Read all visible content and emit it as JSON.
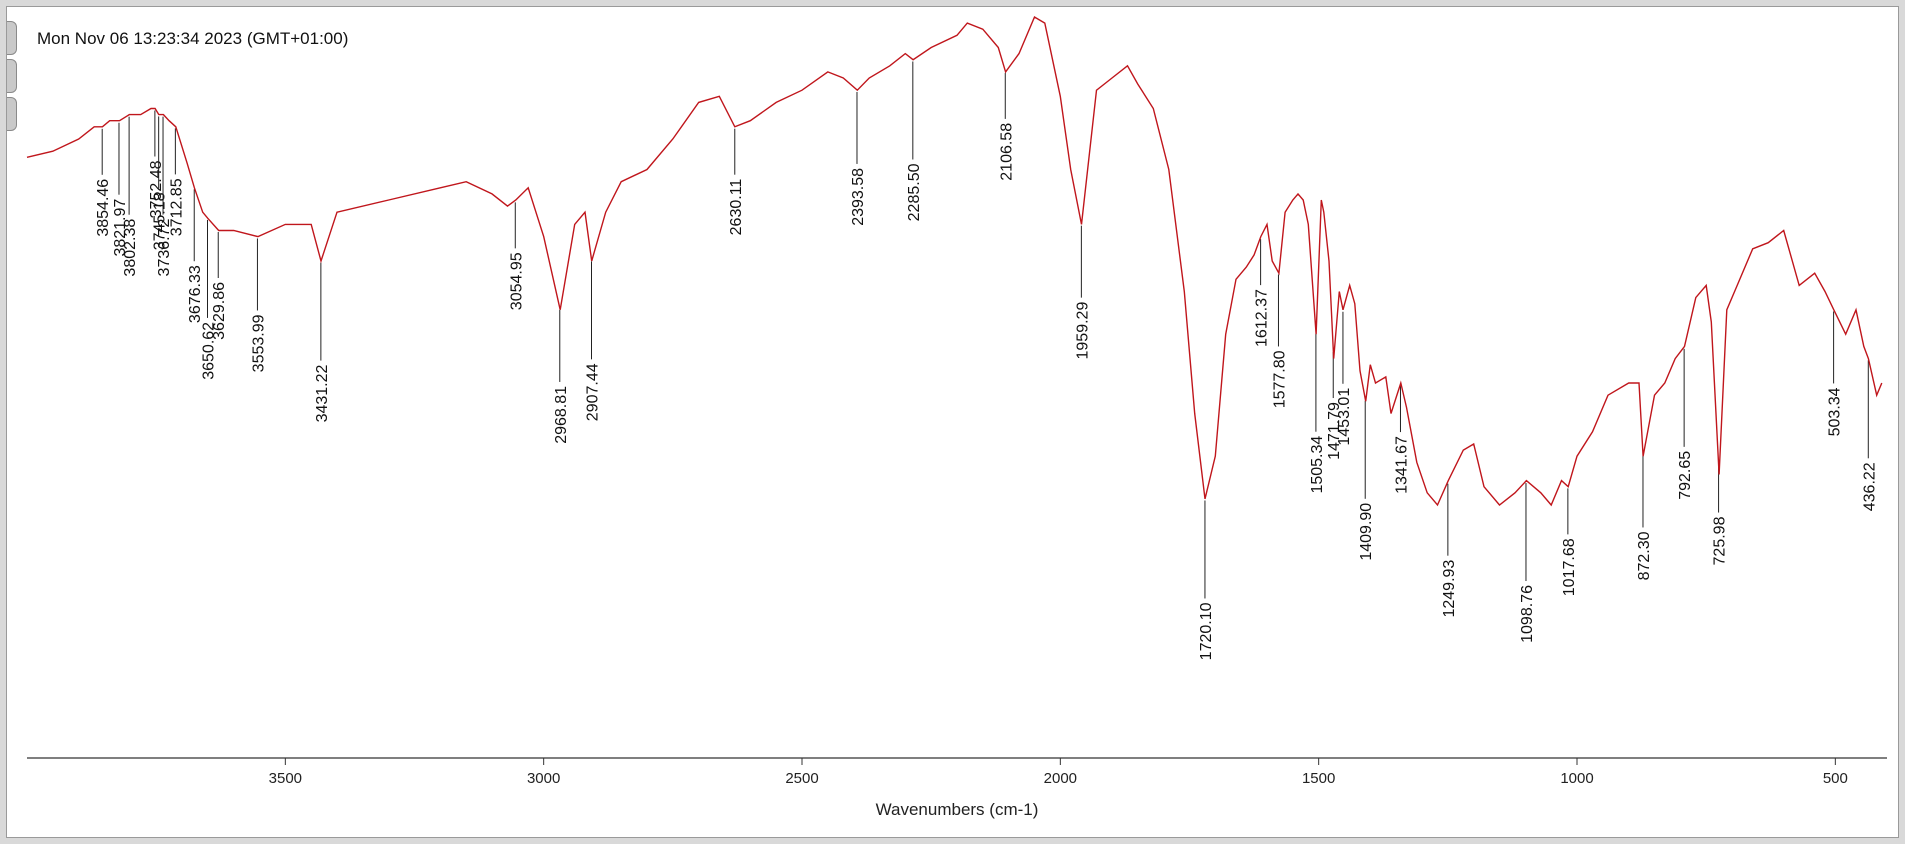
{
  "window": {
    "timestamp": "Mon Nov 06 13:23:34 2023 (GMT+01:00)"
  },
  "colors": {
    "spectrum": "#c0161c",
    "axis": "#333333",
    "background": "#ffffff"
  },
  "chart_data": {
    "type": "line",
    "title": "",
    "xlabel": "Wavenumbers (cm-1)",
    "ylabel": "",
    "xlim": [
      4000,
      400
    ],
    "ylim": [
      0,
      100
    ],
    "x_reversed": true,
    "grid": false,
    "legend": "none",
    "x_ticks": [
      3500,
      3000,
      2500,
      2000,
      1500,
      1000,
      500
    ],
    "x_tick_labels": [
      "3500",
      "3000",
      "2500",
      "2000",
      "1500",
      "1000",
      "500"
    ],
    "series": [
      {
        "x": [
          4000,
          3950,
          3900,
          3870,
          3854,
          3840,
          3821,
          3802,
          3780,
          3760,
          3752,
          3745,
          3736,
          3725,
          3712,
          3690,
          3676,
          3660,
          3650,
          3629,
          3600,
          3553,
          3500,
          3450,
          3431,
          3400,
          3300,
          3200,
          3150,
          3100,
          3070,
          3054,
          3030,
          3000,
          2968,
          2940,
          2920,
          2907,
          2880,
          2850,
          2800,
          2750,
          2700,
          2660,
          2630,
          2600,
          2550,
          2500,
          2450,
          2420,
          2393,
          2370,
          2330,
          2300,
          2285,
          2250,
          2200,
          2180,
          2150,
          2120,
          2106,
          2080,
          2050,
          2030,
          2000,
          1980,
          1959,
          1930,
          1900,
          1870,
          1850,
          1820,
          1790,
          1760,
          1740,
          1720,
          1700,
          1680,
          1660,
          1640,
          1625,
          1612,
          1600,
          1590,
          1577,
          1565,
          1550,
          1540,
          1530,
          1520,
          1505,
          1495,
          1490,
          1480,
          1471,
          1460,
          1453,
          1440,
          1430,
          1420,
          1409,
          1400,
          1390,
          1370,
          1360,
          1341,
          1330,
          1310,
          1290,
          1270,
          1249,
          1220,
          1200,
          1180,
          1150,
          1120,
          1098,
          1070,
          1050,
          1030,
          1017,
          1000,
          970,
          940,
          900,
          880,
          872,
          850,
          830,
          810,
          792,
          770,
          750,
          740,
          725,
          710,
          690,
          660,
          630,
          600,
          570,
          540,
          520,
          503,
          480,
          460,
          445,
          436,
          420,
          410
        ],
        "y": [
          77,
          78,
          80,
          82,
          82,
          83,
          83,
          84,
          84,
          85,
          85,
          84,
          84,
          83,
          82,
          76,
          72,
          68,
          67,
          65,
          65,
          64,
          66,
          66,
          60,
          68,
          70,
          72,
          73,
          71,
          69,
          70,
          72,
          64,
          52,
          66,
          68,
          60,
          68,
          73,
          75,
          80,
          86,
          87,
          82,
          83,
          86,
          88,
          91,
          90,
          88,
          90,
          92,
          94,
          93,
          95,
          97,
          99,
          98,
          95,
          91,
          94,
          100,
          99,
          87,
          75,
          66,
          88,
          90,
          92,
          89,
          85,
          75,
          55,
          35,
          21,
          28,
          48,
          57,
          59,
          61,
          64,
          66,
          60,
          58,
          68,
          70,
          71,
          70,
          66,
          48,
          70,
          68,
          60,
          44,
          55,
          52,
          56,
          53,
          42,
          37,
          43,
          40,
          41,
          35,
          40,
          36,
          27,
          22,
          20,
          24,
          29,
          30,
          23,
          20,
          22,
          24,
          22,
          20,
          24,
          23,
          28,
          32,
          38,
          40,
          40,
          28,
          38,
          40,
          44,
          46,
          54,
          56,
          50,
          25,
          52,
          56,
          62,
          63,
          65,
          56,
          58,
          55,
          52,
          48,
          52,
          46,
          44,
          38,
          40
        ]
      }
    ],
    "peak_labels": [
      {
        "x": 3854.46,
        "text": "3854.46"
      },
      {
        "x": 3821.97,
        "text": "3821.97"
      },
      {
        "x": 3802.38,
        "text": "3802.38"
      },
      {
        "x": 3752.48,
        "text": "3752.48"
      },
      {
        "x": 3745.18,
        "text": "3745.18"
      },
      {
        "x": 3736.72,
        "text": "3736.72"
      },
      {
        "x": 3712.85,
        "text": "3712.85"
      },
      {
        "x": 3676.33,
        "text": "3676.33"
      },
      {
        "x": 3650.62,
        "text": "3650.62"
      },
      {
        "x": 3629.86,
        "text": "3629.86"
      },
      {
        "x": 3553.99,
        "text": "3553.99"
      },
      {
        "x": 3431.22,
        "text": "3431.22"
      },
      {
        "x": 3054.95,
        "text": "3054.95"
      },
      {
        "x": 2968.81,
        "text": "2968.81"
      },
      {
        "x": 2907.44,
        "text": "2907.44"
      },
      {
        "x": 2630.11,
        "text": "2630.11"
      },
      {
        "x": 2393.58,
        "text": "2393.58"
      },
      {
        "x": 2285.5,
        "text": "2285.50"
      },
      {
        "x": 2106.58,
        "text": "2106.58"
      },
      {
        "x": 1959.29,
        "text": "1959.29"
      },
      {
        "x": 1720.1,
        "text": "1720.10"
      },
      {
        "x": 1612.37,
        "text": "1612.37"
      },
      {
        "x": 1577.8,
        "text": "1577.80"
      },
      {
        "x": 1505.34,
        "text": "1505.34"
      },
      {
        "x": 1471.79,
        "text": "1471.79"
      },
      {
        "x": 1453.01,
        "text": "1453.01"
      },
      {
        "x": 1409.9,
        "text": "1409.90"
      },
      {
        "x": 1341.67,
        "text": "1341.67"
      },
      {
        "x": 1249.93,
        "text": "1249.93"
      },
      {
        "x": 1098.76,
        "text": "1098.76"
      },
      {
        "x": 1017.68,
        "text": "1017.68"
      },
      {
        "x": 872.3,
        "text": "872.30"
      },
      {
        "x": 792.65,
        "text": "792.65"
      },
      {
        "x": 725.98,
        "text": "725.98"
      },
      {
        "x": 503.34,
        "text": "503.34"
      },
      {
        "x": 436.22,
        "text": "436.22"
      }
    ]
  }
}
